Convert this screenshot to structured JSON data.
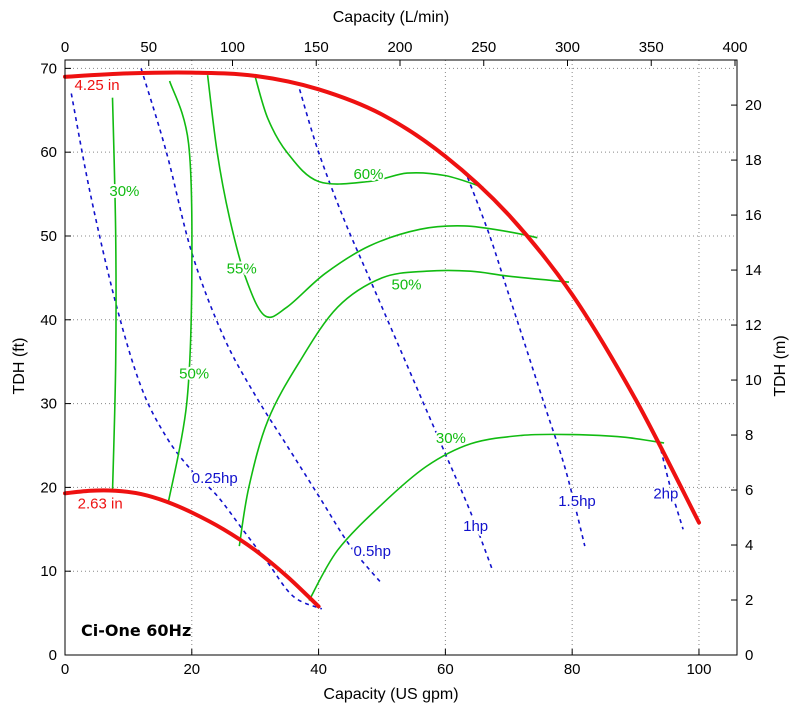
{
  "chart_data": {
    "type": "line",
    "title": "Ci-One 60Hz",
    "xlabel": "Capacity (US gpm)",
    "ylabel": "TDH (ft)",
    "x2label": "Capacity (L/min)",
    "y2label": "TDH (m)",
    "xlim": [
      0,
      106
    ],
    "ylim": [
      0,
      71
    ],
    "x2lim": [
      0,
      401.2
    ],
    "y2lim": [
      0,
      21.64
    ],
    "xticks": [
      0,
      20,
      40,
      60,
      80,
      100
    ],
    "yticks": [
      0,
      10,
      20,
      30,
      40,
      50,
      60,
      70
    ],
    "x2ticks": [
      0,
      50,
      100,
      150,
      200,
      250,
      300,
      350,
      400
    ],
    "y2ticks": [
      0,
      2,
      4,
      6,
      8,
      10,
      12,
      14,
      16,
      18,
      20
    ],
    "grid": true,
    "colors": {
      "impeller": "#ee1111",
      "power": "#1111cc",
      "efficiency": "#11bb11"
    },
    "impeller_curves": [
      {
        "name": "4.25 in",
        "label_at": [
          5.5,
          67.4
        ],
        "points": [
          [
            0,
            69
          ],
          [
            10,
            69.4
          ],
          [
            20,
            69.5
          ],
          [
            30,
            69.1
          ],
          [
            40,
            67.5
          ],
          [
            50,
            64.5
          ],
          [
            60,
            59.5
          ],
          [
            70,
            52.5
          ],
          [
            80,
            43
          ],
          [
            90,
            30.5
          ],
          [
            100,
            15.8
          ]
        ]
      },
      {
        "name": "2.63 in",
        "label_at": [
          6.5,
          17.5
        ],
        "points": [
          [
            0,
            19.3
          ],
          [
            4,
            19.6
          ],
          [
            8,
            19.6
          ],
          [
            12,
            19.2
          ],
          [
            16,
            18.3
          ],
          [
            20,
            17
          ],
          [
            25,
            15
          ],
          [
            30,
            12.5
          ],
          [
            35,
            9.4
          ],
          [
            40,
            5.8
          ]
        ]
      }
    ],
    "power_curves": [
      {
        "name": "0.25hp",
        "label_at": [
          24.5,
          20.5
        ],
        "points": [
          [
            1,
            67
          ],
          [
            4,
            55
          ],
          [
            8,
            42
          ],
          [
            12,
            32
          ],
          [
            16,
            26
          ],
          [
            20,
            22
          ],
          [
            24,
            19
          ],
          [
            28,
            15
          ],
          [
            32,
            11
          ],
          [
            36,
            7
          ],
          [
            40.5,
            5.5
          ]
        ]
      },
      {
        "name": "0.5hp",
        "label_at": [
          45.5,
          11.8
        ],
        "points": [
          [
            12,
            70
          ],
          [
            16,
            60
          ],
          [
            20,
            48
          ],
          [
            25,
            38
          ],
          [
            30,
            31
          ],
          [
            35,
            25
          ],
          [
            40,
            19
          ],
          [
            45,
            13
          ],
          [
            50,
            8.5
          ]
        ]
      },
      {
        "name": "1hp",
        "label_at": [
          65,
          14.8
        ],
        "points": [
          [
            37,
            67.5
          ],
          [
            40,
            60
          ],
          [
            44,
            52
          ],
          [
            48,
            45
          ],
          [
            52,
            38
          ],
          [
            56,
            31
          ],
          [
            60,
            24
          ],
          [
            64,
            17
          ],
          [
            67.5,
            10
          ]
        ]
      },
      {
        "name": "1.5hp",
        "label_at": [
          80.5,
          17.8
        ],
        "points": [
          [
            63.5,
            57
          ],
          [
            67,
            50
          ],
          [
            70,
            43
          ],
          [
            73,
            36
          ],
          [
            76,
            29
          ],
          [
            79,
            22
          ],
          [
            82,
            13
          ]
        ]
      },
      {
        "name": "2hp",
        "label_at": [
          95.5,
          18.7
        ],
        "points": [
          [
            94,
            24.5
          ],
          [
            95.5,
            20
          ],
          [
            97.5,
            15
          ]
        ]
      }
    ],
    "efficiency_curves": [
      {
        "name": "30%",
        "points": [
          [
            7.5,
            66.5
          ],
          [
            8,
            50
          ],
          [
            8,
            35
          ],
          [
            7.5,
            19.5
          ]
        ]
      },
      {
        "name": "30%",
        "points": [
          [
            38.5,
            6.5
          ],
          [
            43,
            12.5
          ],
          [
            50,
            18
          ],
          [
            57,
            22.5
          ],
          [
            64,
            25.2
          ],
          [
            72,
            26.2
          ],
          [
            80,
            26.3
          ],
          [
            88,
            26
          ],
          [
            94.5,
            25.3
          ]
        ]
      },
      {
        "name": "50%",
        "points": [
          [
            16.5,
            68.5
          ],
          [
            19.5,
            61
          ],
          [
            20,
            45
          ],
          [
            19.2,
            30
          ],
          [
            16.3,
            18.2
          ]
        ]
      },
      {
        "name": "50%",
        "points": [
          [
            27.5,
            13
          ],
          [
            29,
            20
          ],
          [
            32,
            28
          ],
          [
            37,
            35
          ],
          [
            43,
            41.5
          ],
          [
            50,
            45
          ],
          [
            57,
            45.8
          ],
          [
            64,
            45.8
          ],
          [
            70,
            45.2
          ],
          [
            79.5,
            44.5
          ]
        ]
      },
      {
        "name": "55%",
        "points": [
          [
            22.5,
            69.2
          ],
          [
            24,
            60
          ],
          [
            26,
            52
          ],
          [
            28.5,
            45
          ],
          [
            31.5,
            40.5
          ],
          [
            35,
            41.5
          ],
          [
            41,
            45.5
          ],
          [
            48,
            48.8
          ],
          [
            56,
            50.8
          ],
          [
            63,
            51.2
          ],
          [
            70,
            50.5
          ],
          [
            74.5,
            49.8
          ]
        ]
      },
      {
        "name": "60%",
        "points": [
          [
            30,
            69
          ],
          [
            32,
            64
          ],
          [
            35,
            60
          ],
          [
            40,
            56.5
          ],
          [
            48,
            56.5
          ],
          [
            54,
            57.5
          ],
          [
            60,
            57.2
          ],
          [
            66,
            55.8
          ]
        ]
      }
    ],
    "annotations": [
      {
        "text": "4.25 in",
        "x": 1.5,
        "y": 67.4,
        "color": "#ee1111"
      },
      {
        "text": "2.63 in",
        "x": 2,
        "y": 17.5,
        "color": "#ee1111"
      },
      {
        "text": "0.25hp",
        "x": 20,
        "y": 20.5,
        "color": "#1111cc"
      },
      {
        "text": "0.5hp",
        "x": 45.5,
        "y": 11.8,
        "color": "#1111cc"
      },
      {
        "text": "1hp",
        "x": 62.8,
        "y": 14.8,
        "color": "#1111cc"
      },
      {
        "text": "1.5hp",
        "x": 77.8,
        "y": 17.8,
        "color": "#1111cc"
      },
      {
        "text": "2hp",
        "x": 92.8,
        "y": 18.7,
        "color": "#1111cc"
      },
      {
        "text": "30%",
        "x": 7,
        "y": 54.8,
        "color": "#11bb11"
      },
      {
        "text": "55%",
        "x": 25.5,
        "y": 45.5,
        "color": "#11bb11"
      },
      {
        "text": "60%",
        "x": 45.5,
        "y": 56.8,
        "color": "#11bb11"
      },
      {
        "text": "50%",
        "x": 51.5,
        "y": 43.6,
        "color": "#11bb11"
      },
      {
        "text": "50%",
        "x": 18,
        "y": 33,
        "color": "#11bb11"
      },
      {
        "text": "30%",
        "x": 58.5,
        "y": 25.3,
        "color": "#11bb11"
      }
    ]
  }
}
